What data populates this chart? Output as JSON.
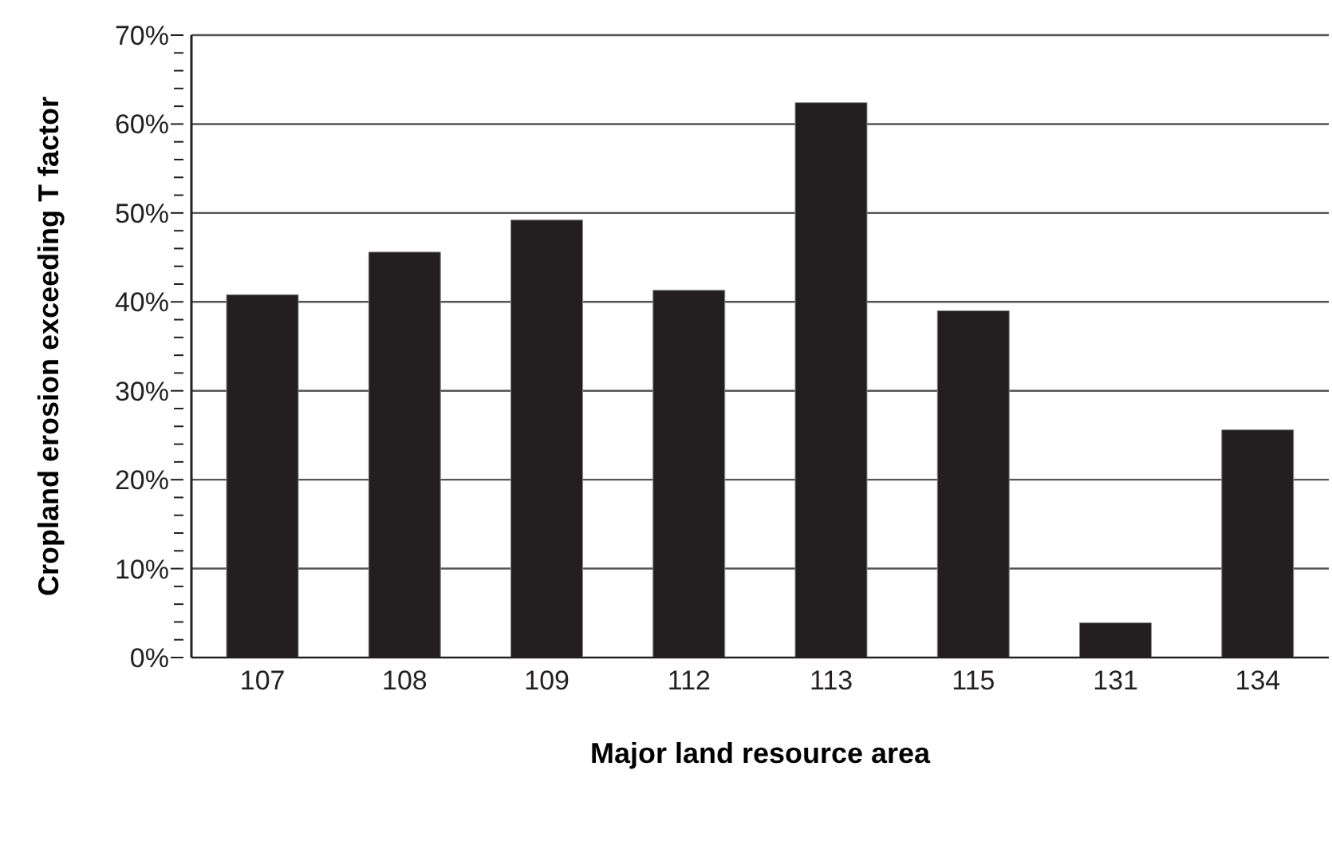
{
  "chart_data": {
    "type": "bar",
    "xlabel": "Major land resource area",
    "ylabel": "Cropland erosion exceeding T factor",
    "categories": [
      "107",
      "108",
      "109",
      "112",
      "113",
      "115",
      "131",
      "134"
    ],
    "values": [
      40.8,
      45.6,
      49.2,
      41.3,
      62.4,
      39.0,
      3.9,
      25.6
    ],
    "color": "#231f20",
    "ylim": [
      0,
      70
    ],
    "yticks": [
      {
        "value": 0,
        "label": "0%"
      },
      {
        "value": 2,
        "label": null
      },
      {
        "value": 4,
        "label": null
      },
      {
        "value": 6,
        "label": null
      },
      {
        "value": 8,
        "label": null
      },
      {
        "value": 10,
        "label": "10%"
      },
      {
        "value": 12,
        "label": null
      },
      {
        "value": 14,
        "label": null
      },
      {
        "value": 16,
        "label": null
      },
      {
        "value": 18,
        "label": null
      },
      {
        "value": 20,
        "label": "20%"
      },
      {
        "value": 22,
        "label": null
      },
      {
        "value": 24,
        "label": null
      },
      {
        "value": 26,
        "label": null
      },
      {
        "value": 28,
        "label": null
      },
      {
        "value": 30,
        "label": "30%"
      },
      {
        "value": 32,
        "label": null
      },
      {
        "value": 34,
        "label": null
      },
      {
        "value": 36,
        "label": null
      },
      {
        "value": 38,
        "label": null
      },
      {
        "value": 40,
        "label": "40%"
      },
      {
        "value": 42,
        "label": null
      },
      {
        "value": 44,
        "label": null
      },
      {
        "value": 46,
        "label": null
      },
      {
        "value": 48,
        "label": null
      },
      {
        "value": 50,
        "label": "50%"
      },
      {
        "value": 52,
        "label": null
      },
      {
        "value": 54,
        "label": null
      },
      {
        "value": 56,
        "label": null
      },
      {
        "value": 58,
        "label": null
      },
      {
        "value": 60,
        "label": "60%"
      },
      {
        "value": 62,
        "label": null
      },
      {
        "value": 64,
        "label": null
      },
      {
        "value": 66,
        "label": null
      },
      {
        "value": 68,
        "label": null
      },
      {
        "value": 70,
        "label": "70%"
      }
    ],
    "grid": "y",
    "legend": false
  }
}
